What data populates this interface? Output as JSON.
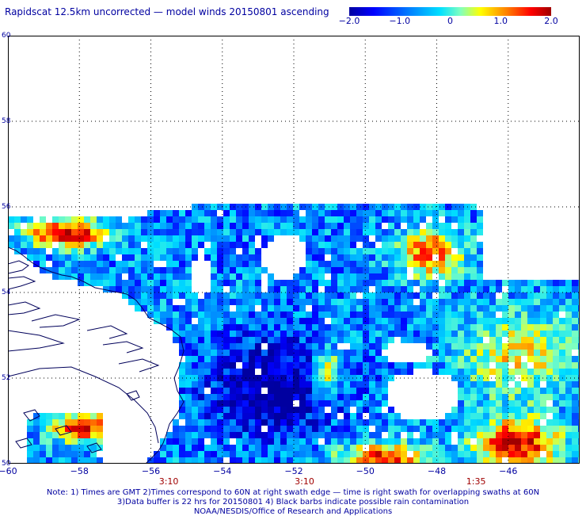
{
  "header": {
    "title": "Rapidscat 12.5km uncorrected — model winds 20150801 ascending"
  },
  "colorbar": {
    "ticks": [
      "−2.0",
      "−1.0",
      "0",
      "1.0",
      "2.0"
    ],
    "tick_values": [
      -2.0,
      -1.0,
      0,
      1.0,
      2.0
    ],
    "range": [
      -2.0,
      2.0
    ],
    "colors": [
      "#0000a0",
      "#0000ff",
      "#0080ff",
      "#00e0ff",
      "#80ffc0",
      "#ffff00",
      "#ff8000",
      "#ff0000",
      "#a00000"
    ]
  },
  "map": {
    "lon_range": [
      -60,
      -44
    ],
    "lat_range": [
      50,
      60
    ],
    "lon_ticks": [
      "−60",
      "−58",
      "−56",
      "−54",
      "−52",
      "−50",
      "−48",
      "−46"
    ],
    "lon_tick_values": [
      -60,
      -58,
      -56,
      -54,
      -52,
      -50,
      -48,
      -46
    ],
    "lat_ticks": [
      "60",
      "58",
      "56",
      "54",
      "52",
      "50"
    ],
    "lat_tick_values": [
      60,
      58,
      56,
      54,
      52,
      50
    ],
    "time_labels": [
      {
        "text": "3:10",
        "lon": -55.5
      },
      {
        "text": "3:10",
        "lon": -51.7
      },
      {
        "text": "1:35",
        "lon": -46.9
      }
    ],
    "coast_color": "#00005a",
    "grid": "dotted"
  },
  "notes": {
    "line1": "Note: 1) Times are GMT 2)Times correspond to 60N at right swath edge — time is right swath for overlapping swaths at 60N",
    "line2": "3)Data buffer is 22 hrs for 20150801 4) Black barbs indicate possible rain contamination",
    "line3": "NOAA/NESDIS/Office of Research and Applications"
  }
}
